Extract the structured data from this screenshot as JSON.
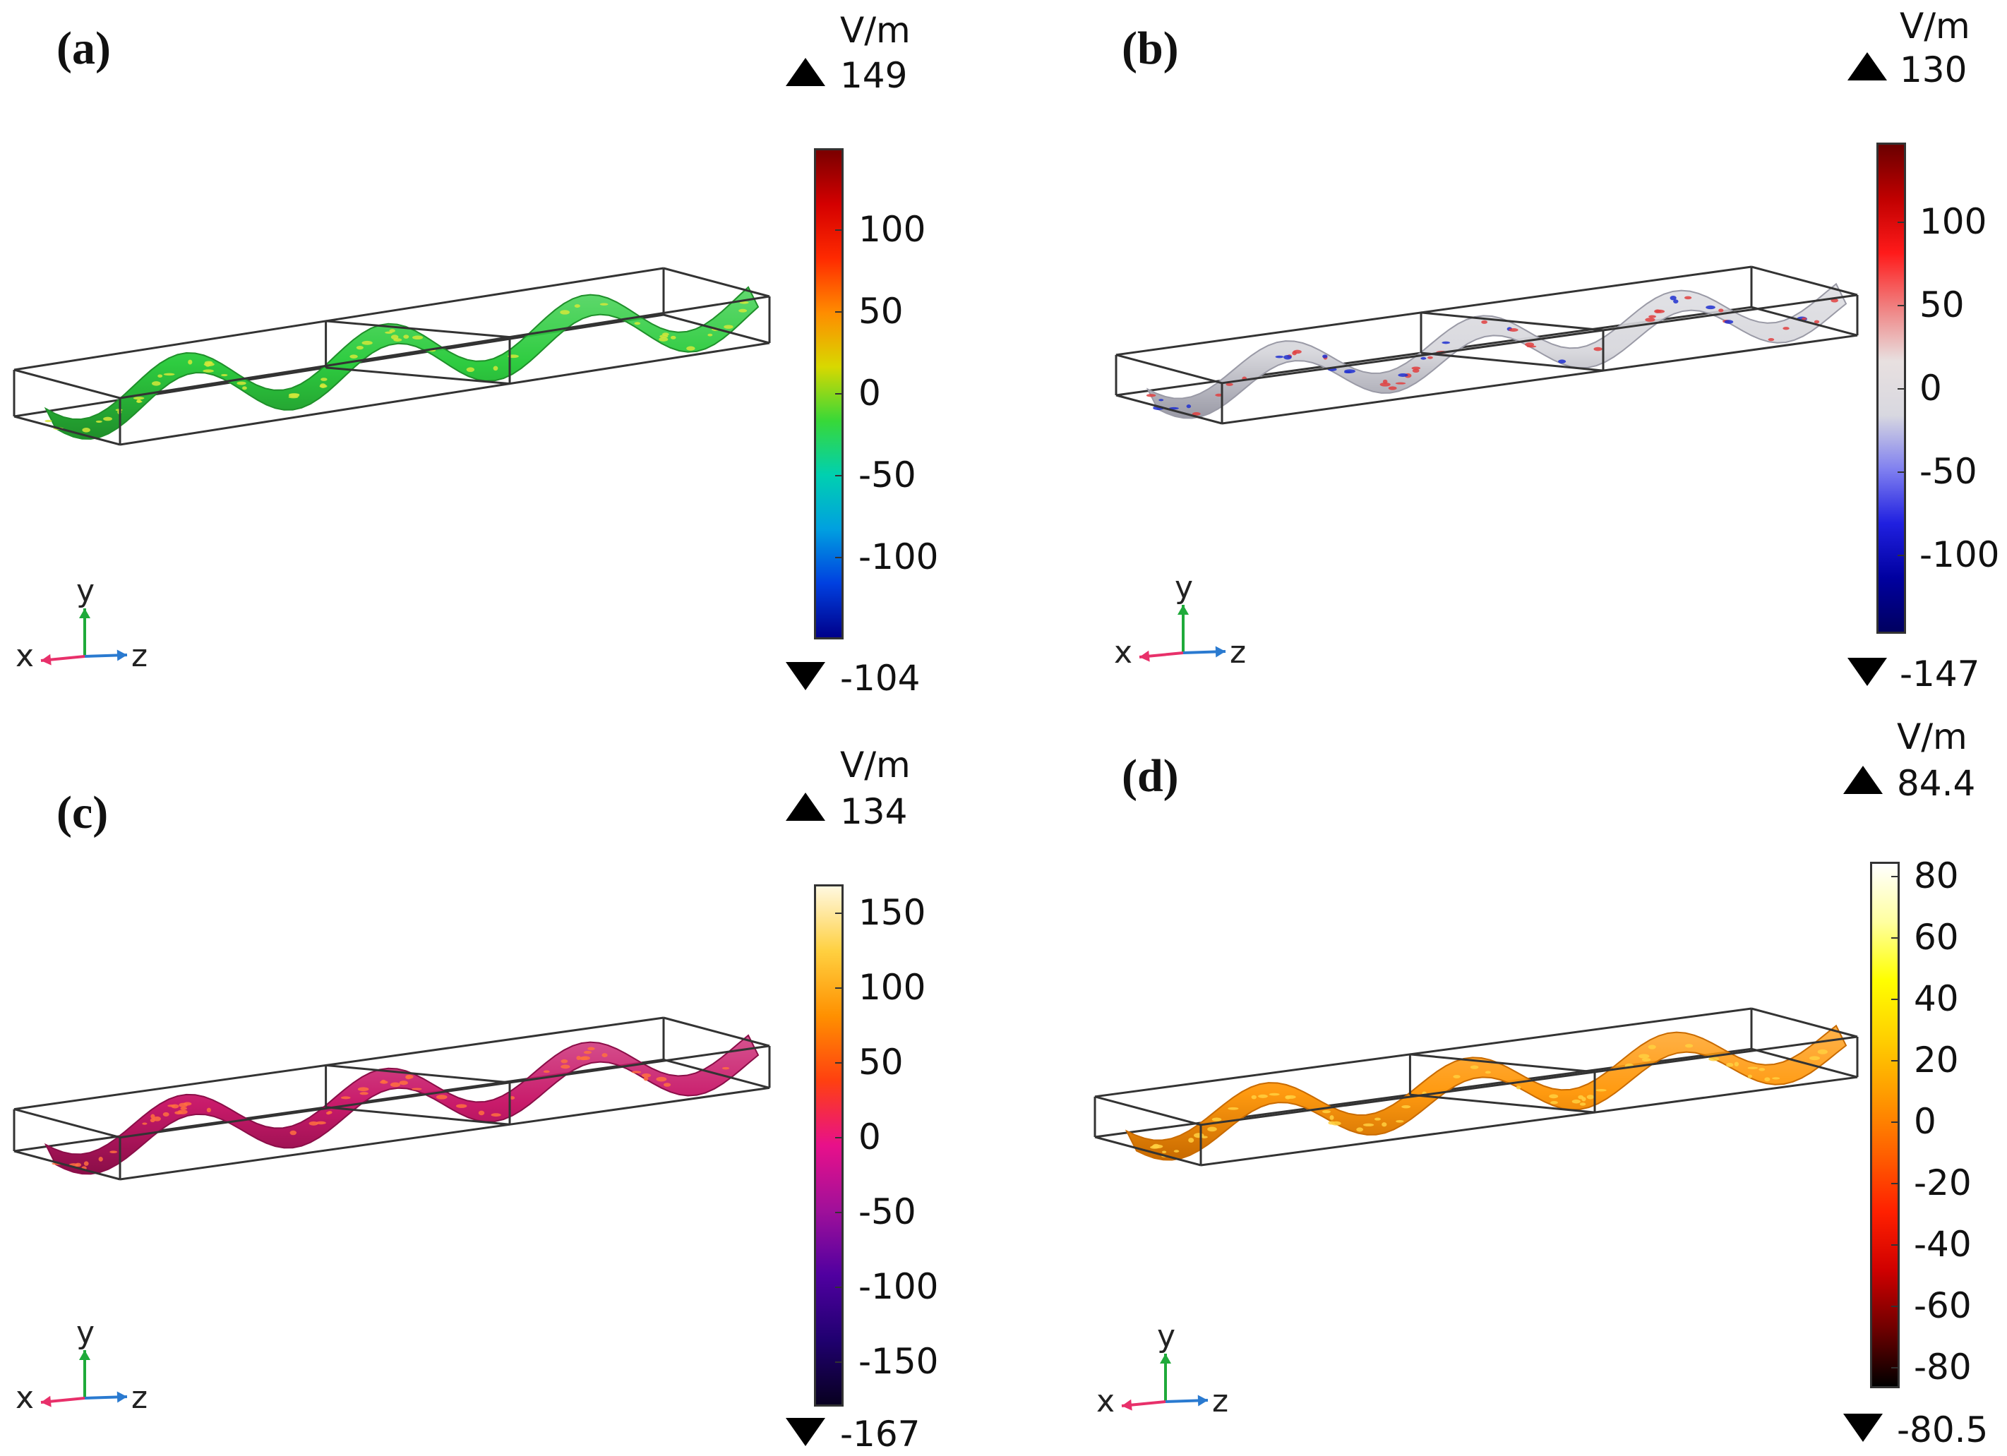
{
  "panels": [
    {
      "label": "(a)",
      "unit": "V/m",
      "max_label": "149",
      "min_label": "-104",
      "ticks": [
        "100",
        "50",
        "0",
        "-50",
        "-100"
      ],
      "colormap": [
        "#ffffff00"
      ],
      "gradient": [
        "#7a0000",
        "#d40000",
        "#ff2a00",
        "#ff8c00",
        "#d8d800",
        "#38d838",
        "#00d0b0",
        "#00a0e0",
        "#0040e0",
        "#00008a"
      ],
      "surface_color": "#2ecc40",
      "surface_edge": "#1f8f2a",
      "speckle": "#d4e83a",
      "axis": {
        "x": "x",
        "y": "y",
        "z": "z"
      }
    },
    {
      "label": "(b)",
      "unit": "V/m",
      "max_label": "130",
      "min_label": "-147",
      "ticks": [
        "100",
        "50",
        "0",
        "-50",
        "-100"
      ],
      "gradient": [
        "#6a0000",
        "#c00000",
        "#ff1a1a",
        "#f08080",
        "#e8e0e0",
        "#d8d8e0",
        "#8080f0",
        "#2020e0",
        "#0000a0",
        "#000060"
      ],
      "surface_color": "#d9d9de",
      "surface_edge": "#9a9aa6",
      "speckle": "#e04040",
      "speckle2": "#2030d0",
      "axis": {
        "x": "x",
        "y": "y",
        "z": "z"
      }
    },
    {
      "label": "(c)",
      "unit": "V/m",
      "max_label": "134",
      "min_label": "-167",
      "ticks": [
        "150",
        "100",
        "50",
        "0",
        "-50",
        "-100",
        "-150"
      ],
      "gradient": [
        "#fff8e0",
        "#ffd040",
        "#ff9000",
        "#ff4010",
        "#e8108a",
        "#a0109a",
        "#5000a0",
        "#200070",
        "#080020"
      ],
      "surface_color": "#c81a6a",
      "surface_edge": "#8a0e48",
      "speckle": "#ff7040",
      "axis": {
        "x": "x",
        "y": "y",
        "z": "z"
      }
    },
    {
      "label": "(d)",
      "unit": "V/m",
      "max_label": "84.4",
      "min_label": "-80.5",
      "ticks": [
        "80",
        "60",
        "40",
        "20",
        "0",
        "-20",
        "-40",
        "-60",
        "-80"
      ],
      "gradient": [
        "#ffffff",
        "#ffffa0",
        "#ffff00",
        "#ffd000",
        "#ff9a00",
        "#ff6000",
        "#ff2000",
        "#d00000",
        "#700000",
        "#000000"
      ],
      "surface_color": "#ff9a10",
      "surface_edge": "#c86a00",
      "speckle": "#ffd040",
      "axis": {
        "x": "x",
        "y": "y",
        "z": "z"
      }
    }
  ]
}
